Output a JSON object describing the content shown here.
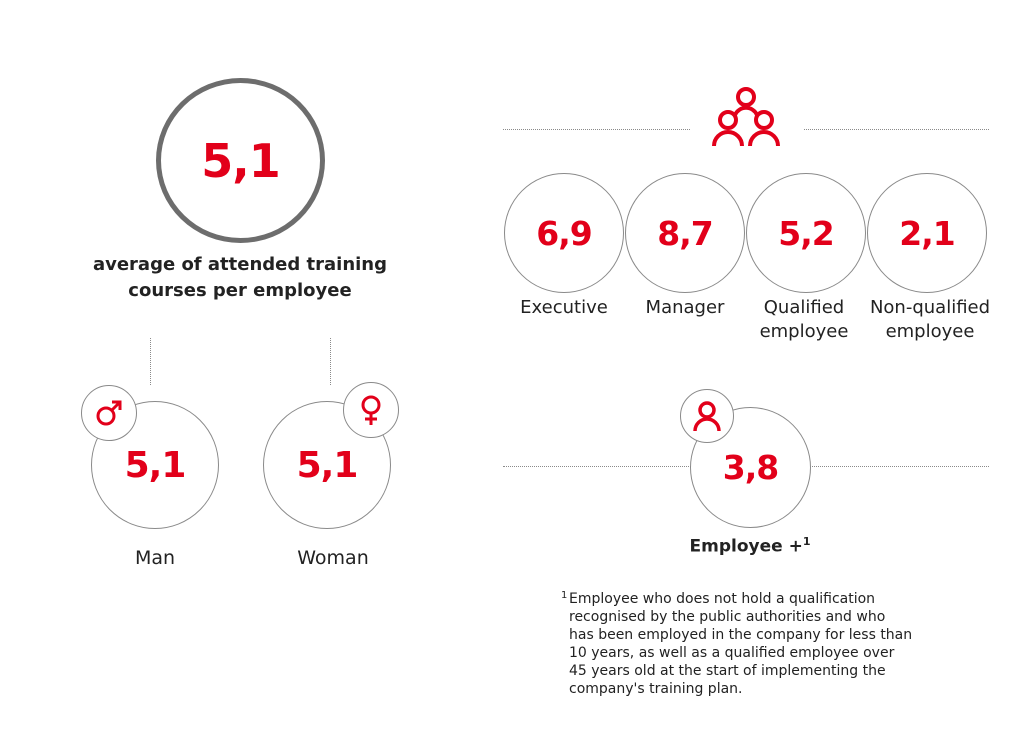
{
  "overall": {
    "value": "5,1",
    "caption_line1": "average of attended training",
    "caption_line2": "courses per employee"
  },
  "gender": [
    {
      "value": "5,1",
      "label": "Man",
      "icon": "male-icon"
    },
    {
      "value": "5,1",
      "label": "Woman",
      "icon": "female-icon"
    }
  ],
  "categories": [
    {
      "value": "6,9",
      "label_line1": "Executive",
      "label_line2": ""
    },
    {
      "value": "8,7",
      "label_line1": "Manager",
      "label_line2": ""
    },
    {
      "value": "5,2",
      "label_line1": "Qualified",
      "label_line2": "employee"
    },
    {
      "value": "2,1",
      "label_line1": "Non-qualified",
      "label_line2": "employee"
    }
  ],
  "employee_plus": {
    "value": "3,8",
    "label": "Employee +",
    "superscript": "1"
  },
  "footnote": {
    "marker": "1",
    "lines": [
      "Employee who does not hold a qualification",
      "recognised by the public authorities and who",
      "has been employed in the company for less than",
      "10 years, as well as a qualified employee over",
      "45 years old at the start of implementing the",
      "company's training plan."
    ]
  },
  "colors": {
    "accent": "#e2001a",
    "ring": "#6d6d6d",
    "line": "#8a8a8a"
  }
}
